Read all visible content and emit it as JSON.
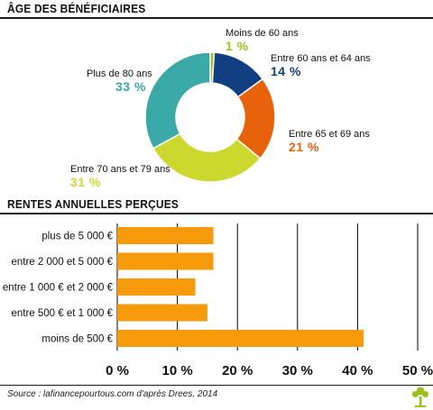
{
  "section1_title": "ÂGE DES BÉNÉFICIAIRES",
  "section2_title": "RENTES ANNUELLES PERÇUES",
  "source": "Source : lafinancepourtous.com d'après Drees, 2014",
  "colors": {
    "bar": "#f59b0b",
    "grid": "#000000"
  },
  "icons": {
    "logo": "tree-icon"
  },
  "chart_data": [
    {
      "type": "pie",
      "variant": "donut",
      "title": "ÂGE DES BÉNÉFICIAIRES",
      "slices": [
        {
          "label": "Moins de 60 ans",
          "value": 1,
          "value_label": "1 %",
          "color": "#9ebf1c"
        },
        {
          "label": "Entre 60 ans et 64 ans",
          "value": 14,
          "value_label": "14 %",
          "color": "#123f82"
        },
        {
          "label": "Entre 65 et 69 ans",
          "value": 21,
          "value_label": "21 %",
          "color": "#e8620c"
        },
        {
          "label": "Entre 70 ans et 79 ans",
          "value": 31,
          "value_label": "31 %",
          "color": "#cdd82f"
        },
        {
          "label": "Plus de 80 ans",
          "value": 33,
          "value_label": "33 %",
          "color": "#3aa9a8"
        }
      ]
    },
    {
      "type": "bar",
      "orientation": "horizontal",
      "title": "RENTES ANNUELLES PERÇUES",
      "categories": [
        "plus de 5 000 €",
        "entre 2 000 et 5 000 €",
        "entre 1 000 € et 2 000 €",
        "entre 500 € et 1 000 €",
        "moins de 500 €"
      ],
      "values": [
        16,
        16,
        13,
        15,
        41
      ],
      "xlim": [
        0,
        50
      ],
      "xticks": [
        0,
        10,
        20,
        30,
        40,
        50
      ],
      "xtick_labels": [
        "0 %",
        "10 %",
        "20 %",
        "30 %",
        "40 %",
        "50 %"
      ],
      "grid": true
    }
  ]
}
